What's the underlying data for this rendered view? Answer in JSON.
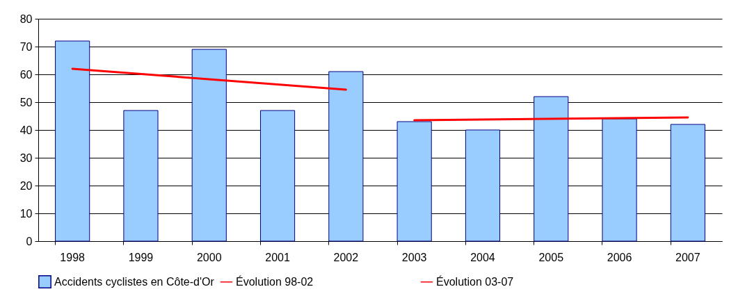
{
  "chart_data": {
    "type": "bar",
    "categories": [
      "1998",
      "1999",
      "2000",
      "2001",
      "2002",
      "2003",
      "2004",
      "2005",
      "2006",
      "2007"
    ],
    "ylim": [
      0,
      80
    ],
    "yticks": [
      0,
      10,
      20,
      30,
      40,
      50,
      60,
      70,
      80
    ],
    "grid": "y",
    "legend": "bottom",
    "series": [
      {
        "name": "Accidents cyclistes en Côte-d'Or",
        "color": "#99ccff",
        "values": [
          72,
          47,
          69,
          47,
          61,
          43,
          40,
          52,
          44,
          42
        ]
      },
      {
        "name": "Évolution 98-02",
        "type": "line",
        "color": "#ff0000",
        "values": [
          62,
          null,
          null,
          null,
          54.5,
          null,
          null,
          null,
          null,
          null
        ]
      },
      {
        "name": "Évolution 03-07",
        "type": "line",
        "color": "#ff0000",
        "values": [
          null,
          null,
          null,
          null,
          null,
          43.5,
          null,
          null,
          null,
          44.5
        ]
      }
    ]
  }
}
